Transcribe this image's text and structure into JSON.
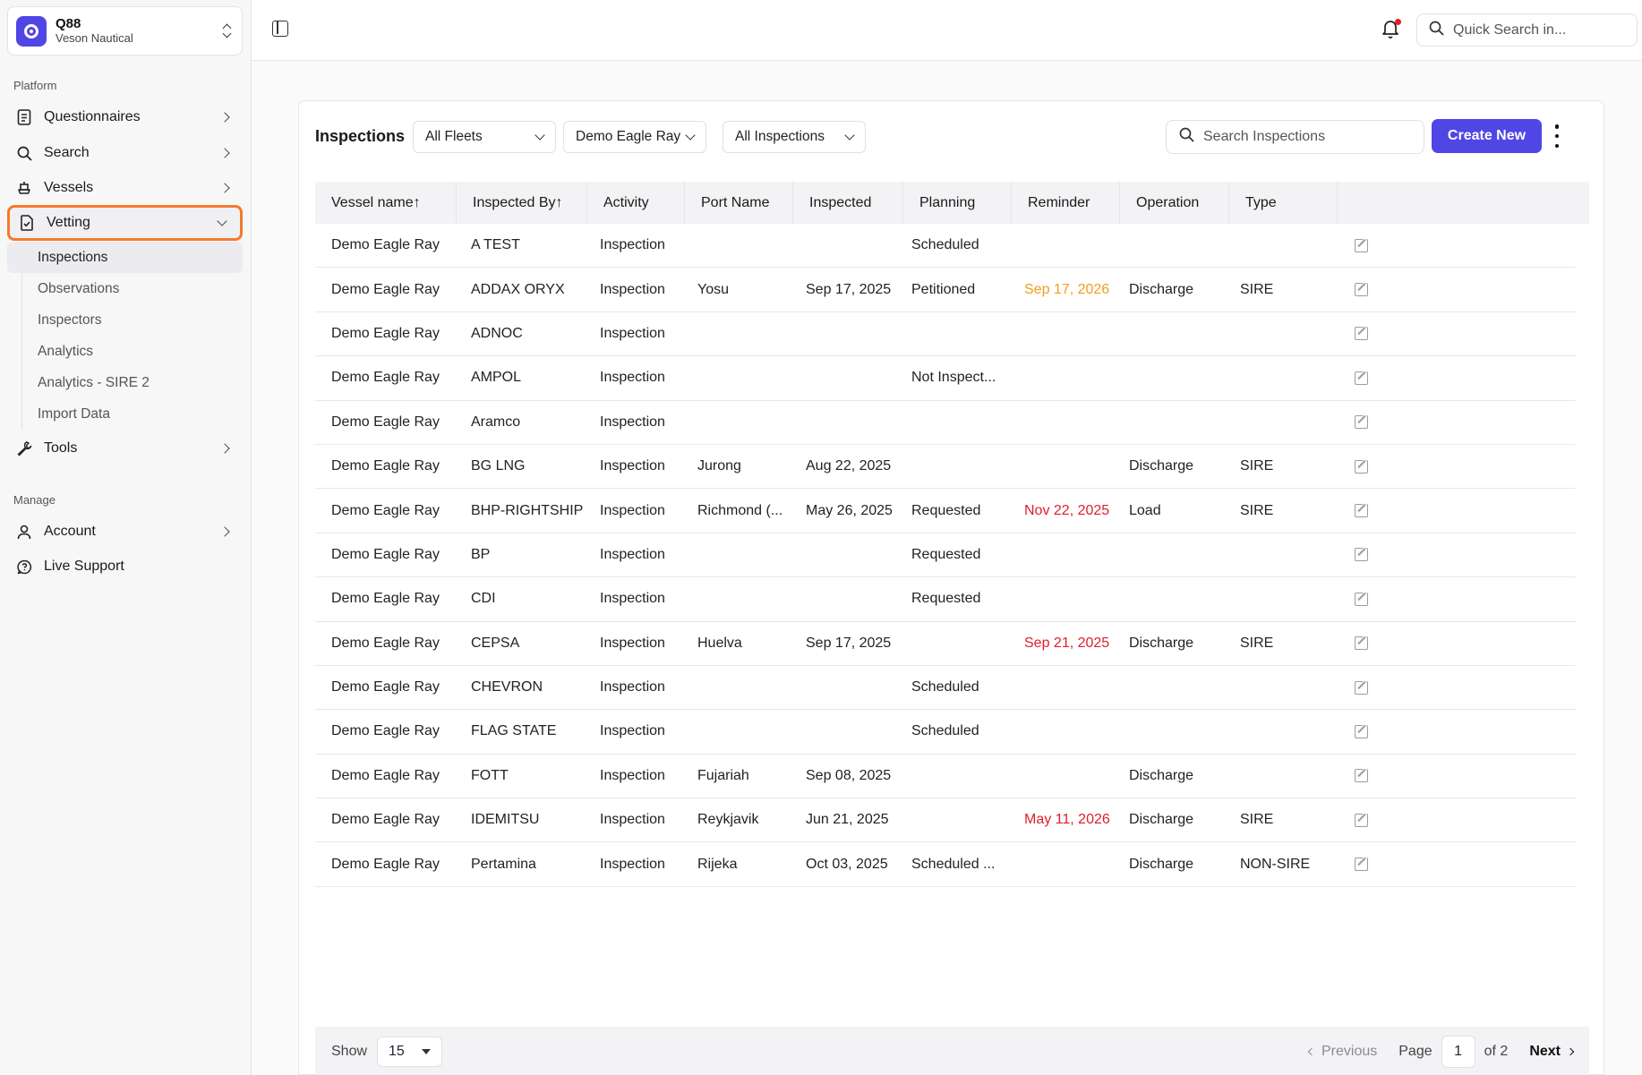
{
  "org": {
    "name": "Q88",
    "subtitle": "Veson Nautical"
  },
  "sidebar": {
    "platform_label": "Platform",
    "manage_label": "Manage",
    "items": [
      {
        "label": "Questionnaires",
        "icon": "file-list-icon"
      },
      {
        "label": "Search",
        "icon": "search-icon"
      },
      {
        "label": "Vessels",
        "icon": "ship-icon"
      },
      {
        "label": "Vetting",
        "icon": "file-check-icon"
      }
    ],
    "vetting_sub": [
      "Inspections",
      "Observations",
      "Inspectors",
      "Analytics",
      "Analytics - SIRE 2",
      "Import Data"
    ],
    "tools": {
      "label": "Tools",
      "icon": "wrench-icon"
    },
    "account": {
      "label": "Account",
      "icon": "user-icon"
    },
    "support": {
      "label": "Live Support",
      "icon": "chat-icon"
    }
  },
  "topbar": {
    "quick_search_placeholder": "Quick Search in..."
  },
  "card": {
    "title": "Inspections",
    "filters": {
      "fleet": "All Fleets",
      "vessel": "Demo Eagle Ray",
      "inspection": "All Inspections"
    },
    "search_placeholder": "Search Inspections",
    "create_label": "Create New"
  },
  "table": {
    "columns": [
      "Vessel name↑",
      "Inspected By↑",
      "Activity",
      "Port Name",
      "Inspected",
      "Planning",
      "Reminder",
      "Operation",
      "Type"
    ],
    "rows": [
      [
        "Demo Eagle Ray",
        "A TEST",
        "Inspection",
        "",
        "",
        "Scheduled",
        "",
        "",
        ""
      ],
      [
        "Demo Eagle Ray",
        "ADDAX ORYX",
        "Inspection",
        "Yosu",
        "Sep 17, 2025",
        "Petitioned",
        "Sep 17, 2026",
        "Discharge",
        "SIRE"
      ],
      [
        "Demo Eagle Ray",
        "ADNOC",
        "Inspection",
        "",
        "",
        "",
        "",
        "",
        ""
      ],
      [
        "Demo Eagle Ray",
        "AMPOL",
        "Inspection",
        "",
        "",
        "Not Inspect...",
        "",
        "",
        ""
      ],
      [
        "Demo Eagle Ray",
        "Aramco",
        "Inspection",
        "",
        "",
        "",
        "",
        "",
        ""
      ],
      [
        "Demo Eagle Ray",
        "BG LNG",
        "Inspection",
        "Jurong",
        "Aug 22, 2025",
        "",
        "",
        "Discharge",
        "SIRE"
      ],
      [
        "Demo Eagle Ray",
        "BHP-RIGHTSHIP",
        "Inspection",
        "Richmond (...",
        "May 26, 2025",
        "Requested",
        "Nov 22, 2025",
        "Load",
        "SIRE"
      ],
      [
        "Demo Eagle Ray",
        "BP",
        "Inspection",
        "",
        "",
        "Requested",
        "",
        "",
        ""
      ],
      [
        "Demo Eagle Ray",
        "CDI",
        "Inspection",
        "",
        "",
        "Requested",
        "",
        "",
        ""
      ],
      [
        "Demo Eagle Ray",
        "CEPSA",
        "Inspection",
        "Huelva",
        "Sep 17, 2025",
        "",
        "Sep 21, 2025",
        "Discharge",
        "SIRE"
      ],
      [
        "Demo Eagle Ray",
        "CHEVRON",
        "Inspection",
        "",
        "",
        "Scheduled",
        "",
        "",
        ""
      ],
      [
        "Demo Eagle Ray",
        "FLAG STATE",
        "Inspection",
        "",
        "",
        "Scheduled",
        "",
        "",
        ""
      ],
      [
        "Demo Eagle Ray",
        "FOTT",
        "Inspection",
        "Fujariah",
        "Sep 08, 2025",
        "",
        "",
        "Discharge",
        ""
      ],
      [
        "Demo Eagle Ray",
        "IDEMITSU",
        "Inspection",
        "Reykjavik",
        "Jun 21, 2025",
        "",
        "May 11, 2026",
        "Discharge",
        "SIRE"
      ],
      [
        "Demo Eagle Ray",
        "Pertamina",
        "Inspection",
        "Rijeka",
        "Oct 03, 2025",
        "Scheduled ...",
        "",
        "Discharge",
        "NON-SIRE"
      ]
    ],
    "reminder_colors": [
      "",
      "orange",
      "",
      "",
      "",
      "",
      "red",
      "",
      "",
      "red",
      "",
      "",
      "",
      "red",
      ""
    ]
  },
  "footer": {
    "show_label": "Show",
    "page_size": "15",
    "previous": "Previous",
    "page_label": "Page",
    "page": "1",
    "of_label": "of 2",
    "next": "Next"
  },
  "colors": {
    "accent": "#5046e5",
    "active_outline": "#f47a2e",
    "overdue": "#e11d2a",
    "upcoming": "#f29d1b"
  }
}
